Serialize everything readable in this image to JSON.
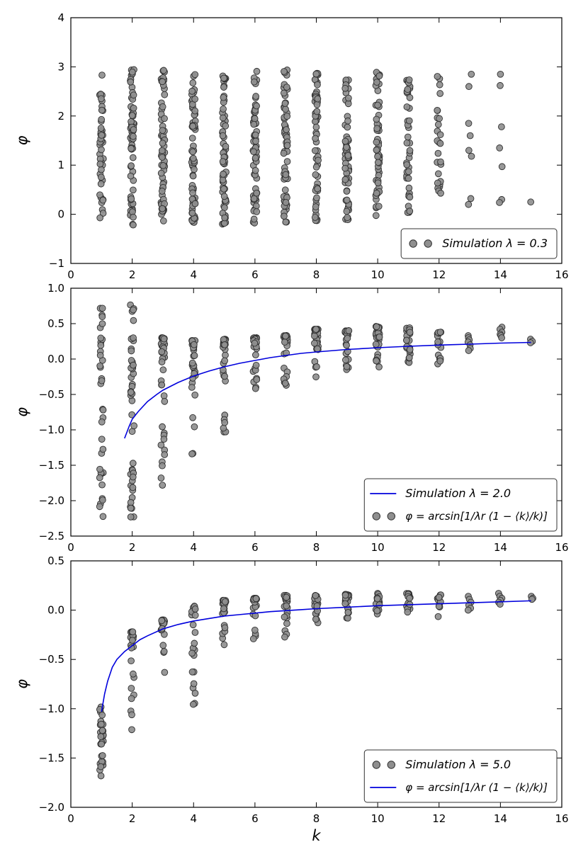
{
  "figure": {
    "colors": {
      "marker_fill": "#8f8f8f",
      "marker_edge": "#2e2e2e",
      "curve": "#0000dd",
      "axis": "#000000",
      "legend_border": "#333333",
      "background": "#ffffff"
    }
  },
  "chart_data": [
    {
      "type": "scatter",
      "title": "",
      "ylabel": "φ",
      "xlabel": "",
      "xlim": [
        0,
        16
      ],
      "ylim": [
        -1,
        4
      ],
      "xtick_values": [
        0,
        2,
        4,
        6,
        8,
        10,
        12,
        14,
        16
      ],
      "xtick_labels": [
        "0",
        "2",
        "4",
        "6",
        "8",
        "10",
        "12",
        "14",
        "16"
      ],
      "ytick_values": [
        -1,
        0,
        1,
        2,
        3,
        4
      ],
      "ytick_labels": [
        "−1",
        "0",
        "1",
        "2",
        "3",
        "4"
      ],
      "grid": false,
      "legend_position": "lower right",
      "legend": [
        {
          "marker": "circles",
          "label": "Simulation  λ = 0.3"
        }
      ],
      "seed": 11,
      "columns": [
        {
          "k": 1,
          "n": 46,
          "lo": -0.15,
          "hi": 2.9,
          "d": "u"
        },
        {
          "k": 2,
          "n": 62,
          "lo": -0.22,
          "hi": 2.95,
          "d": "u"
        },
        {
          "k": 3,
          "n": 64,
          "lo": -0.2,
          "hi": 2.95,
          "d": "u"
        },
        {
          "k": 4,
          "n": 64,
          "lo": -0.18,
          "hi": 2.95,
          "d": "u"
        },
        {
          "k": 5,
          "n": 64,
          "lo": -0.2,
          "hi": 2.92,
          "d": "u"
        },
        {
          "k": 6,
          "n": 62,
          "lo": -0.2,
          "hi": 2.92,
          "d": "u"
        },
        {
          "k": 7,
          "n": 62,
          "lo": -0.18,
          "hi": 2.95,
          "d": "u"
        },
        {
          "k": 8,
          "n": 60,
          "lo": -0.2,
          "hi": 2.9,
          "d": "u"
        },
        {
          "k": 9,
          "n": 58,
          "lo": -0.15,
          "hi": 2.92,
          "d": "u"
        },
        {
          "k": 10,
          "n": 56,
          "lo": -0.12,
          "hi": 2.92,
          "d": "u"
        },
        {
          "k": 11,
          "n": 40,
          "lo": -0.1,
          "hi": 2.85,
          "d": "u"
        },
        {
          "k": 12,
          "n": 26,
          "lo": 0.05,
          "hi": 2.85,
          "d": "u"
        },
        {
          "k": 13,
          "values": [
            2.85,
            2.6,
            1.85,
            1.6,
            1.3,
            1.18,
            0.32,
            0.2
          ]
        },
        {
          "k": 14,
          "values": [
            2.85,
            2.62,
            1.78,
            1.35,
            0.97,
            0.3,
            0.24
          ]
        },
        {
          "k": 15,
          "values": [
            0.25
          ]
        }
      ],
      "curve": null
    },
    {
      "type": "scatter",
      "title": "",
      "ylabel": "φ",
      "xlabel": "",
      "xlim": [
        0,
        16
      ],
      "ylim": [
        -2.5,
        1.0
      ],
      "xtick_values": [
        0,
        2,
        4,
        6,
        8,
        10,
        12,
        14,
        16
      ],
      "xtick_labels": [
        "0",
        "2",
        "4",
        "6",
        "8",
        "10",
        "12",
        "14",
        "16"
      ],
      "ytick_values": [
        -2.5,
        -2.0,
        -1.5,
        -1.0,
        -0.5,
        0.0,
        0.5,
        1.0
      ],
      "ytick_labels": [
        "−2.5",
        "−2.0",
        "−1.5",
        "−1.0",
        "−0.5",
        "0.0",
        "0.5",
        "1.0"
      ],
      "grid": false,
      "legend_position": "lower right",
      "legend": [
        {
          "marker": "line",
          "label": "Simulation  λ = 2.0"
        },
        {
          "marker": "circles",
          "label": "φ = arcsin[1/λr (1 − ⟨k⟩/k)]"
        }
      ],
      "seed": 23,
      "columns": [
        {
          "k": 1,
          "n": 36,
          "lo": -2.25,
          "hi": 0.76,
          "d": "u"
        },
        {
          "k": 2,
          "n": 46,
          "lo": -2.3,
          "hi": 0.78,
          "d": "u"
        },
        {
          "k": 3,
          "n": 40,
          "lo": -2.05,
          "hi": 0.3,
          "d": "t"
        },
        {
          "k": 4,
          "n": 32,
          "lo": -1.9,
          "hi": 0.26,
          "d": "t"
        },
        {
          "k": 5,
          "n": 30,
          "lo": -1.05,
          "hi": 0.28,
          "d": "t"
        },
        {
          "k": 6,
          "n": 30,
          "lo": -0.45,
          "hi": 0.3,
          "d": "t"
        },
        {
          "k": 7,
          "n": 28,
          "lo": -0.38,
          "hi": 0.33,
          "d": "t"
        },
        {
          "k": 8,
          "n": 30,
          "lo": -0.32,
          "hi": 0.42,
          "d": "t"
        },
        {
          "k": 9,
          "n": 28,
          "lo": -0.22,
          "hi": 0.4,
          "d": "t"
        },
        {
          "k": 10,
          "n": 30,
          "lo": -0.12,
          "hi": 0.46,
          "d": "t"
        },
        {
          "k": 11,
          "n": 24,
          "lo": -0.06,
          "hi": 0.44,
          "d": "t"
        },
        {
          "k": 12,
          "n": 16,
          "lo": -0.1,
          "hi": 0.38,
          "d": "t"
        },
        {
          "k": 13,
          "values": [
            0.33,
            0.3,
            0.27,
            0.24,
            0.2,
            0.15,
            0.12
          ]
        },
        {
          "k": 14,
          "values": [
            0.45,
            0.42,
            0.38,
            0.35,
            0.33,
            0.3
          ]
        },
        {
          "k": 15,
          "values": [
            0.28,
            0.25,
            0.23
          ]
        }
      ],
      "curve": [
        [
          1.75,
          -1.12
        ],
        [
          1.9,
          -0.95
        ],
        [
          2.0,
          -0.85
        ],
        [
          2.2,
          -0.74
        ],
        [
          2.5,
          -0.6
        ],
        [
          2.8,
          -0.5
        ],
        [
          3.0,
          -0.44
        ],
        [
          3.5,
          -0.33
        ],
        [
          4.0,
          -0.24
        ],
        [
          4.5,
          -0.17
        ],
        [
          5.0,
          -0.11
        ],
        [
          5.5,
          -0.06
        ],
        [
          6.0,
          -0.02
        ],
        [
          6.5,
          0.02
        ],
        [
          7.0,
          0.05
        ],
        [
          7.5,
          0.08
        ],
        [
          8.0,
          0.1
        ],
        [
          9.0,
          0.135
        ],
        [
          10.0,
          0.16
        ],
        [
          11.0,
          0.18
        ],
        [
          12.0,
          0.197
        ],
        [
          13.0,
          0.21
        ],
        [
          14.0,
          0.225
        ],
        [
          15.0,
          0.235
        ]
      ]
    },
    {
      "type": "scatter",
      "title": "",
      "ylabel": "φ",
      "xlabel": "k",
      "xlim": [
        0,
        16
      ],
      "ylim": [
        -2.0,
        0.5
      ],
      "xtick_values": [
        0,
        2,
        4,
        6,
        8,
        10,
        12,
        14,
        16
      ],
      "xtick_labels": [
        "0",
        "2",
        "4",
        "6",
        "8",
        "10",
        "12",
        "14",
        "16"
      ],
      "ytick_values": [
        -2.0,
        -1.5,
        -1.0,
        -0.5,
        0.0,
        0.5
      ],
      "ytick_labels": [
        "−2.0",
        "−1.5",
        "−1.0",
        "−0.5",
        "0.0",
        "0.5"
      ],
      "grid": false,
      "legend_position": "lower right",
      "legend": [
        {
          "marker": "circles",
          "label": "Simulation  λ = 5.0"
        },
        {
          "marker": "line",
          "label": "φ = arcsin[1/λr (1 − ⟨k⟩/k)]"
        }
      ],
      "seed": 37,
      "columns": [
        {
          "k": 1,
          "n": 30,
          "lo": -1.7,
          "hi": -0.98,
          "d": "u"
        },
        {
          "k": 2,
          "n": 26,
          "lo": -1.25,
          "hi": -0.22,
          "d": "t"
        },
        {
          "k": 3,
          "n": 24,
          "lo": -0.85,
          "hi": -0.1,
          "d": "t"
        },
        {
          "k": 4,
          "n": 24,
          "lo": -0.97,
          "hi": 0.04,
          "d": "t"
        },
        {
          "k": 5,
          "n": 24,
          "lo": -0.36,
          "hi": 0.1,
          "d": "t"
        },
        {
          "k": 6,
          "n": 24,
          "lo": -0.3,
          "hi": 0.12,
          "d": "t"
        },
        {
          "k": 7,
          "n": 22,
          "lo": -0.36,
          "hi": 0.15,
          "d": "t"
        },
        {
          "k": 8,
          "n": 22,
          "lo": -0.14,
          "hi": 0.15,
          "d": "t"
        },
        {
          "k": 9,
          "n": 20,
          "lo": -0.1,
          "hi": 0.16,
          "d": "t"
        },
        {
          "k": 10,
          "n": 20,
          "lo": -0.08,
          "hi": 0.17,
          "d": "t"
        },
        {
          "k": 11,
          "n": 18,
          "lo": -0.05,
          "hi": 0.17,
          "d": "t"
        },
        {
          "k": 12,
          "n": 13,
          "lo": -0.08,
          "hi": 0.16,
          "d": "t"
        },
        {
          "k": 13,
          "values": [
            0.14,
            0.11,
            0.08,
            0.05,
            0.02,
            0.0
          ]
        },
        {
          "k": 14,
          "values": [
            0.17,
            0.14,
            0.12,
            0.1,
            0.08,
            0.06
          ]
        },
        {
          "k": 15,
          "values": [
            0.14,
            0.12,
            0.11
          ]
        }
      ],
      "curve": [
        [
          1.0,
          -1.03
        ],
        [
          1.1,
          -0.85
        ],
        [
          1.2,
          -0.72
        ],
        [
          1.35,
          -0.58
        ],
        [
          1.5,
          -0.5
        ],
        [
          1.75,
          -0.42
        ],
        [
          2.0,
          -0.36
        ],
        [
          2.25,
          -0.3
        ],
        [
          2.5,
          -0.26
        ],
        [
          3.0,
          -0.19
        ],
        [
          3.5,
          -0.145
        ],
        [
          4.0,
          -0.11
        ],
        [
          4.5,
          -0.085
        ],
        [
          5.0,
          -0.06
        ],
        [
          5.5,
          -0.045
        ],
        [
          6.0,
          -0.03
        ],
        [
          6.5,
          -0.015
        ],
        [
          7.0,
          -0.005
        ],
        [
          7.5,
          0.005
        ],
        [
          8.0,
          0.015
        ],
        [
          9.0,
          0.03
        ],
        [
          10.0,
          0.045
        ],
        [
          11.0,
          0.055
        ],
        [
          12.0,
          0.065
        ],
        [
          13.0,
          0.075
        ],
        [
          14.0,
          0.085
        ],
        [
          15.0,
          0.095
        ]
      ]
    }
  ]
}
